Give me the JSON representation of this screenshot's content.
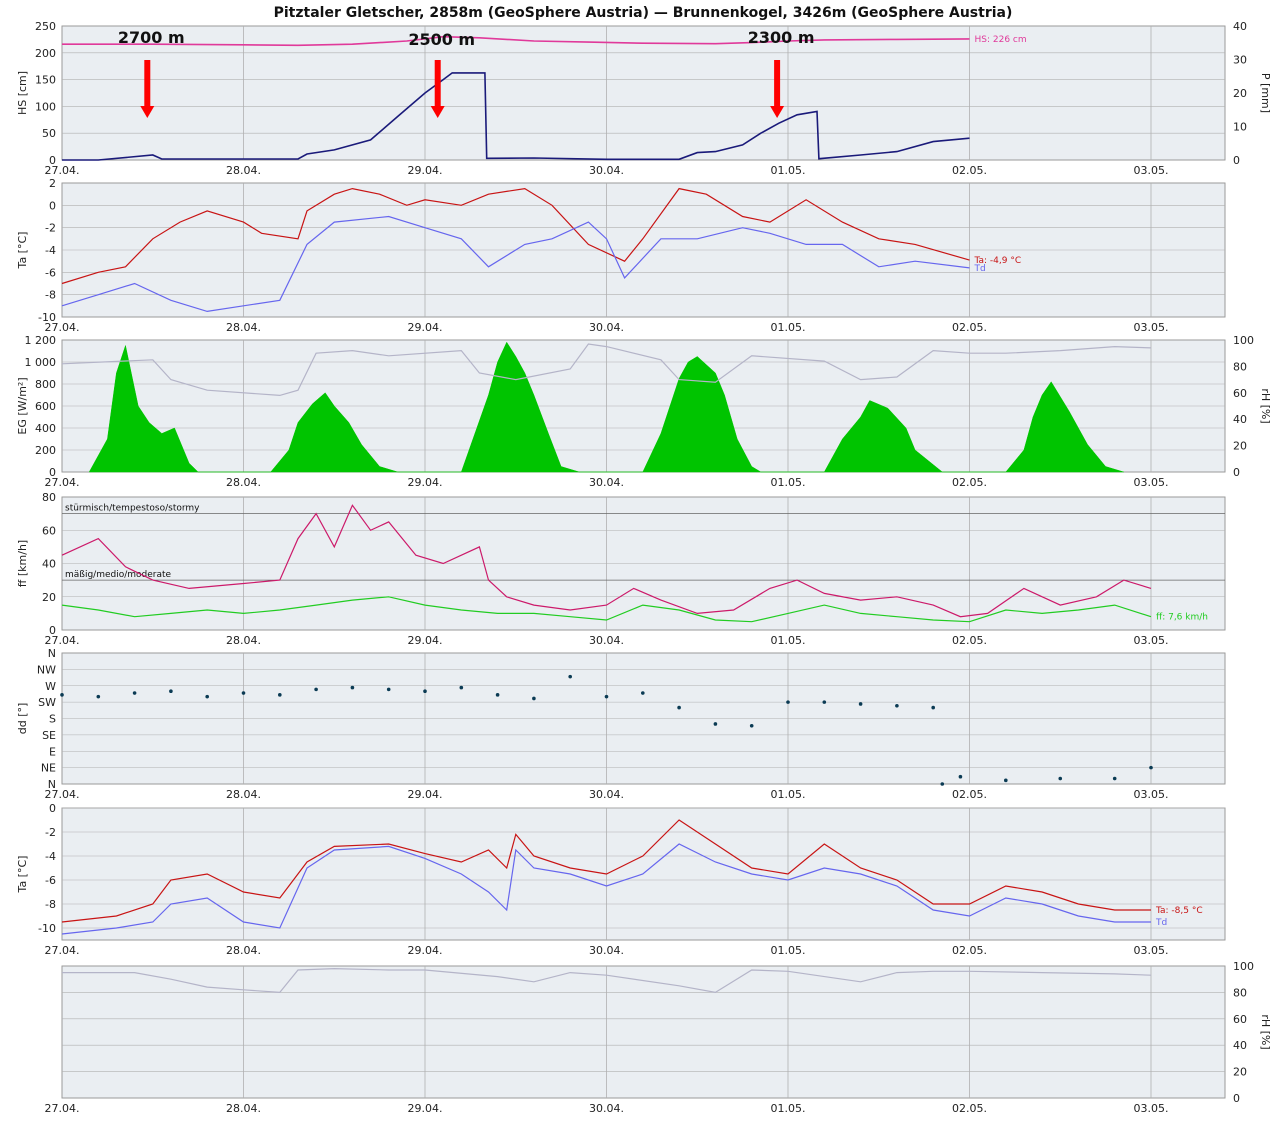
{
  "title": "Pitztaler Gletscher, 2858m (GeoSphere Austria) — Brunnenkogel, 3426m (GeoSphere Austria)",
  "x_ticks": [
    "27.04.",
    "28.04.",
    "29.04.",
    "30.04.",
    "01.05.",
    "02.05.",
    "03.05."
  ],
  "colors": {
    "hs": "#e0399a",
    "precip": "#1a1a7a",
    "ta": "#c81414",
    "td": "#6666ee",
    "rh": "#b4b4c8",
    "eg": "#00c400",
    "ff_gust": "#cc1a6a",
    "ff": "#22cc22",
    "dd": "#0b3b54",
    "arrow": "#ff0000",
    "plot_bg": "#eaeef2",
    "grid": "#b0b0b0"
  },
  "annotations": [
    {
      "label": "2700 m",
      "day": 0.47
    },
    {
      "label": "2500 m",
      "day": 2.07
    },
    {
      "label": "2300 m",
      "day": 3.94
    }
  ],
  "chart_data": [
    {
      "id": "snow-precip",
      "type": "line",
      "ylabel": "HS [cm]",
      "y2label": "P [mm]",
      "ylim": [
        0,
        250
      ],
      "yticks": [
        "0",
        "50",
        "100",
        "150",
        "200",
        "250"
      ],
      "y2lim": [
        0,
        40
      ],
      "y2ticks": [
        "0",
        "10",
        "20",
        "30",
        "40"
      ],
      "series": [
        {
          "name": "HS",
          "axis": "left",
          "current_label": "HS: 226 cm",
          "x": [
            0,
            0.5,
            1.0,
            1.3,
            1.6,
            1.9,
            2.1,
            2.3,
            2.6,
            2.9,
            3.2,
            3.6,
            3.8,
            4.0,
            4.2,
            4.6,
            5.0
          ],
          "y": [
            216,
            216,
            215,
            214,
            216,
            222,
            230,
            228,
            222,
            220,
            218,
            217,
            219,
            222,
            224,
            225,
            226
          ]
        },
        {
          "name": "P",
          "axis": "right",
          "x": [
            0,
            0.2,
            0.5,
            0.55,
            1.0,
            1.3,
            1.35,
            1.5,
            1.7,
            1.85,
            2.0,
            2.1,
            2.15,
            2.33,
            2.34,
            2.6,
            3.0,
            3.4,
            3.5,
            3.6,
            3.75,
            3.85,
            3.95,
            4.05,
            4.16,
            4.17,
            4.4,
            4.6,
            4.8,
            5.0
          ],
          "y": [
            0,
            0,
            1.5,
            0.3,
            0.3,
            0.3,
            1.8,
            3,
            6,
            13,
            20,
            24,
            26,
            26,
            0.5,
            0.6,
            0.2,
            0.2,
            2.2,
            2.5,
            4.5,
            8,
            11,
            13.5,
            14.5,
            0.4,
            1.5,
            2.5,
            5.5,
            6.5
          ]
        }
      ]
    },
    {
      "id": "temp-2858",
      "type": "line",
      "ylabel": "Ta [°C]",
      "ylim": [
        -10,
        2
      ],
      "yticks": [
        "-10",
        "-8",
        "-6",
        "-4",
        "-2",
        "0",
        "2"
      ],
      "series": [
        {
          "name": "Ta",
          "current_label": "Ta: -4,9 °C",
          "x": [
            0,
            0.2,
            0.35,
            0.5,
            0.65,
            0.8,
            1.0,
            1.1,
            1.3,
            1.35,
            1.5,
            1.6,
            1.75,
            1.9,
            2.0,
            2.2,
            2.35,
            2.55,
            2.7,
            2.9,
            3.1,
            3.2,
            3.4,
            3.55,
            3.75,
            3.9,
            4.1,
            4.3,
            4.5,
            4.7,
            5.0
          ],
          "y": [
            -7,
            -6,
            -5.5,
            -3,
            -1.5,
            -0.5,
            -1.5,
            -2.5,
            -3,
            -0.5,
            1,
            1.5,
            1,
            0,
            0.5,
            0,
            1,
            1.5,
            0,
            -3.5,
            -5,
            -3,
            1.5,
            1,
            -1,
            -1.5,
            0.5,
            -1.5,
            -3,
            -3.5,
            -4.9
          ]
        },
        {
          "name": "Td",
          "current_label": "Td",
          "x": [
            0,
            0.2,
            0.4,
            0.6,
            0.8,
            1.0,
            1.2,
            1.35,
            1.5,
            1.8,
            2.0,
            2.2,
            2.35,
            2.55,
            2.7,
            2.9,
            3.0,
            3.1,
            3.3,
            3.5,
            3.75,
            3.9,
            4.1,
            4.3,
            4.5,
            4.7,
            5.0
          ],
          "y": [
            -9,
            -8,
            -7,
            -8.5,
            -9.5,
            -9,
            -8.5,
            -3.5,
            -1.5,
            -1,
            -2,
            -3,
            -5.5,
            -3.5,
            -3,
            -1.5,
            -3,
            -6.5,
            -3,
            -3,
            -2,
            -2.5,
            -3.5,
            -3.5,
            -5.5,
            -5,
            -5.6
          ]
        }
      ]
    },
    {
      "id": "radiation-rh",
      "type": "area",
      "ylabel": "EG [W/m²]",
      "y2label": "rH [%]",
      "ylim": [
        0,
        1200
      ],
      "yticks": [
        "0",
        "200",
        "400",
        "600",
        "800",
        "1 000",
        "1 200"
      ],
      "y2lim": [
        0,
        100
      ],
      "y2ticks": [
        "0",
        "20",
        "40",
        "60",
        "80",
        "100"
      ],
      "series": [
        {
          "name": "EG",
          "axis": "left",
          "x": [
            0.15,
            0.25,
            0.3,
            0.35,
            0.42,
            0.48,
            0.55,
            0.62,
            0.7,
            0.75,
            0.85,
            1.15,
            1.25,
            1.3,
            1.38,
            1.45,
            1.5,
            1.58,
            1.65,
            1.75,
            1.85,
            2.2,
            2.35,
            2.4,
            2.45,
            2.5,
            2.55,
            2.6,
            2.68,
            2.75,
            2.85,
            3.2,
            3.3,
            3.4,
            3.45,
            3.5,
            3.6,
            3.65,
            3.72,
            3.8,
            3.85,
            4.2,
            4.3,
            4.4,
            4.45,
            4.55,
            4.65,
            4.7,
            4.85,
            5.2,
            5.3,
            5.35,
            5.4,
            5.45,
            5.55,
            5.65,
            5.75,
            5.85
          ],
          "y": [
            0,
            300,
            900,
            1150,
            600,
            450,
            350,
            400,
            80,
            0,
            0,
            0,
            200,
            450,
            620,
            720,
            600,
            450,
            250,
            50,
            0,
            0,
            700,
            1000,
            1180,
            1050,
            900,
            700,
            350,
            50,
            0,
            0,
            350,
            850,
            1000,
            1050,
            900,
            700,
            300,
            50,
            0,
            0,
            300,
            500,
            650,
            580,
            400,
            200,
            0,
            0,
            200,
            500,
            700,
            820,
            550,
            250,
            50,
            0
          ]
        },
        {
          "name": "rH",
          "axis": "right",
          "x": [
            0,
            0.5,
            0.6,
            0.8,
            1.2,
            1.3,
            1.4,
            1.6,
            1.8,
            2.2,
            2.3,
            2.5,
            2.8,
            2.9,
            3.0,
            3.3,
            3.4,
            3.6,
            3.8,
            4.2,
            4.4,
            4.6,
            4.8,
            5.0,
            5.2,
            5.5,
            5.8,
            6.0
          ],
          "y": [
            82,
            85,
            70,
            62,
            58,
            62,
            90,
            92,
            88,
            92,
            75,
            70,
            78,
            97,
            95,
            85,
            70,
            68,
            88,
            84,
            70,
            72,
            92,
            90,
            90,
            92,
            95,
            94
          ]
        }
      ]
    },
    {
      "id": "wind-speed",
      "type": "line",
      "ylabel": "ff [km/h]",
      "ylim": [
        0,
        80
      ],
      "yticks": [
        "0",
        "20",
        "40",
        "60",
        "80"
      ],
      "zones": [
        {
          "label": "stürmisch/tempestoso/stormy",
          "value": 70
        },
        {
          "label": "mäßig/medio/moderate",
          "value": 30
        }
      ],
      "series": [
        {
          "name": "gust",
          "x": [
            0,
            0.2,
            0.35,
            0.5,
            0.7,
            1.0,
            1.2,
            1.3,
            1.4,
            1.5,
            1.6,
            1.7,
            1.8,
            1.95,
            2.1,
            2.3,
            2.35,
            2.45,
            2.6,
            2.8,
            3.0,
            3.15,
            3.3,
            3.5,
            3.7,
            3.9,
            4.05,
            4.2,
            4.4,
            4.6,
            4.8,
            4.95,
            5.1,
            5.3,
            5.5,
            5.7,
            5.85,
            6.0
          ],
          "y": [
            45,
            55,
            38,
            30,
            25,
            28,
            30,
            55,
            70,
            50,
            75,
            60,
            65,
            45,
            40,
            50,
            30,
            20,
            15,
            12,
            15,
            25,
            18,
            10,
            12,
            25,
            30,
            22,
            18,
            20,
            15,
            8,
            10,
            25,
            15,
            20,
            30,
            25
          ]
        },
        {
          "name": "ff",
          "current_label": "ff: 7,6 km/h",
          "x": [
            0,
            0.2,
            0.4,
            0.6,
            0.8,
            1.0,
            1.2,
            1.4,
            1.6,
            1.8,
            2.0,
            2.2,
            2.4,
            2.6,
            2.8,
            3.0,
            3.2,
            3.4,
            3.6,
            3.8,
            4.0,
            4.2,
            4.4,
            4.6,
            4.8,
            5.0,
            5.2,
            5.4,
            5.6,
            5.8,
            6.0
          ],
          "y": [
            15,
            12,
            8,
            10,
            12,
            10,
            12,
            15,
            18,
            20,
            15,
            12,
            10,
            10,
            8,
            6,
            15,
            12,
            6,
            5,
            10,
            15,
            10,
            8,
            6,
            5,
            12,
            10,
            12,
            15,
            8
          ]
        }
      ]
    },
    {
      "id": "wind-direction",
      "type": "scatter",
      "ylabel": "dd [°]",
      "ylim": [
        0,
        360
      ],
      "yticks": [
        "N",
        "NE",
        "E",
        "SE",
        "S",
        "SW",
        "W",
        "NW",
        "N"
      ],
      "series": [
        {
          "name": "dd",
          "x": [
            0,
            0.2,
            0.4,
            0.6,
            0.8,
            1.0,
            1.2,
            1.4,
            1.6,
            1.8,
            2.0,
            2.2,
            2.4,
            2.6,
            2.8,
            3.0,
            3.2,
            3.4,
            3.6,
            3.8,
            4.0,
            4.2,
            4.4,
            4.6,
            4.8,
            4.85,
            4.95,
            5.2,
            5.5,
            5.8,
            6.0
          ],
          "y": [
            245,
            240,
            250,
            255,
            240,
            250,
            245,
            260,
            265,
            260,
            255,
            265,
            245,
            235,
            295,
            240,
            250,
            210,
            165,
            160,
            225,
            225,
            220,
            215,
            210,
            0,
            20,
            10,
            15,
            15,
            45
          ]
        }
      ]
    },
    {
      "id": "temp-3426",
      "type": "line",
      "ylabel": "Ta [°C]",
      "ylim": [
        -11,
        0
      ],
      "yticks": [
        "-10",
        "-8",
        "-6",
        "-4",
        "-2",
        "0"
      ],
      "series": [
        {
          "name": "Ta",
          "current_label": "Ta: -8,5 °C",
          "x": [
            0,
            0.3,
            0.5,
            0.6,
            0.8,
            1.0,
            1.2,
            1.35,
            1.5,
            1.8,
            2.0,
            2.2,
            2.35,
            2.45,
            2.5,
            2.6,
            2.8,
            3.0,
            3.2,
            3.4,
            3.6,
            3.8,
            4.0,
            4.2,
            4.4,
            4.6,
            4.8,
            5.0,
            5.2,
            5.4,
            5.6,
            5.8,
            6.0
          ],
          "y": [
            -9.5,
            -9,
            -8,
            -6,
            -5.5,
            -7,
            -7.5,
            -4.5,
            -3.2,
            -3,
            -3.8,
            -4.5,
            -3.5,
            -5,
            -2.2,
            -4,
            -5,
            -5.5,
            -4,
            -1,
            -3,
            -5,
            -5.5,
            -3,
            -5,
            -6,
            -8,
            -8,
            -6.5,
            -7,
            -8,
            -8.5,
            -8.5
          ]
        },
        {
          "name": "Td",
          "current_label": "Td",
          "x": [
            0,
            0.3,
            0.5,
            0.6,
            0.8,
            1.0,
            1.2,
            1.35,
            1.5,
            1.8,
            2.0,
            2.2,
            2.35,
            2.45,
            2.5,
            2.6,
            2.8,
            3.0,
            3.2,
            3.4,
            3.6,
            3.8,
            4.0,
            4.2,
            4.4,
            4.6,
            4.8,
            5.0,
            5.2,
            5.4,
            5.6,
            5.8,
            6.0
          ],
          "y": [
            -10.5,
            -10,
            -9.5,
            -8,
            -7.5,
            -9.5,
            -10,
            -5,
            -3.5,
            -3.2,
            -4.2,
            -5.5,
            -7,
            -8.5,
            -3.5,
            -5,
            -5.5,
            -6.5,
            -5.5,
            -3,
            -4.5,
            -5.5,
            -6,
            -5,
            -5.5,
            -6.5,
            -8.5,
            -9,
            -7.5,
            -8,
            -9,
            -9.5,
            -9.5
          ]
        }
      ]
    },
    {
      "id": "rh-3426",
      "type": "line",
      "y2label": "rH [%]",
      "y2lim": [
        0,
        100
      ],
      "y2ticks": [
        "0",
        "20",
        "40",
        "60",
        "80",
        "100"
      ],
      "series": [
        {
          "name": "rH",
          "axis": "right",
          "x": [
            0,
            0.4,
            0.6,
            0.8,
            1.0,
            1.2,
            1.3,
            1.5,
            1.8,
            2.0,
            2.4,
            2.6,
            2.8,
            3.0,
            3.4,
            3.6,
            3.8,
            4.0,
            4.4,
            4.6,
            4.8,
            5.0,
            5.4,
            5.8,
            6.0
          ],
          "y": [
            95,
            95,
            90,
            84,
            82,
            80,
            97,
            98,
            97,
            97,
            92,
            88,
            95,
            93,
            85,
            80,
            97,
            96,
            88,
            95,
            96,
            96,
            95,
            94,
            93
          ]
        }
      ]
    }
  ]
}
